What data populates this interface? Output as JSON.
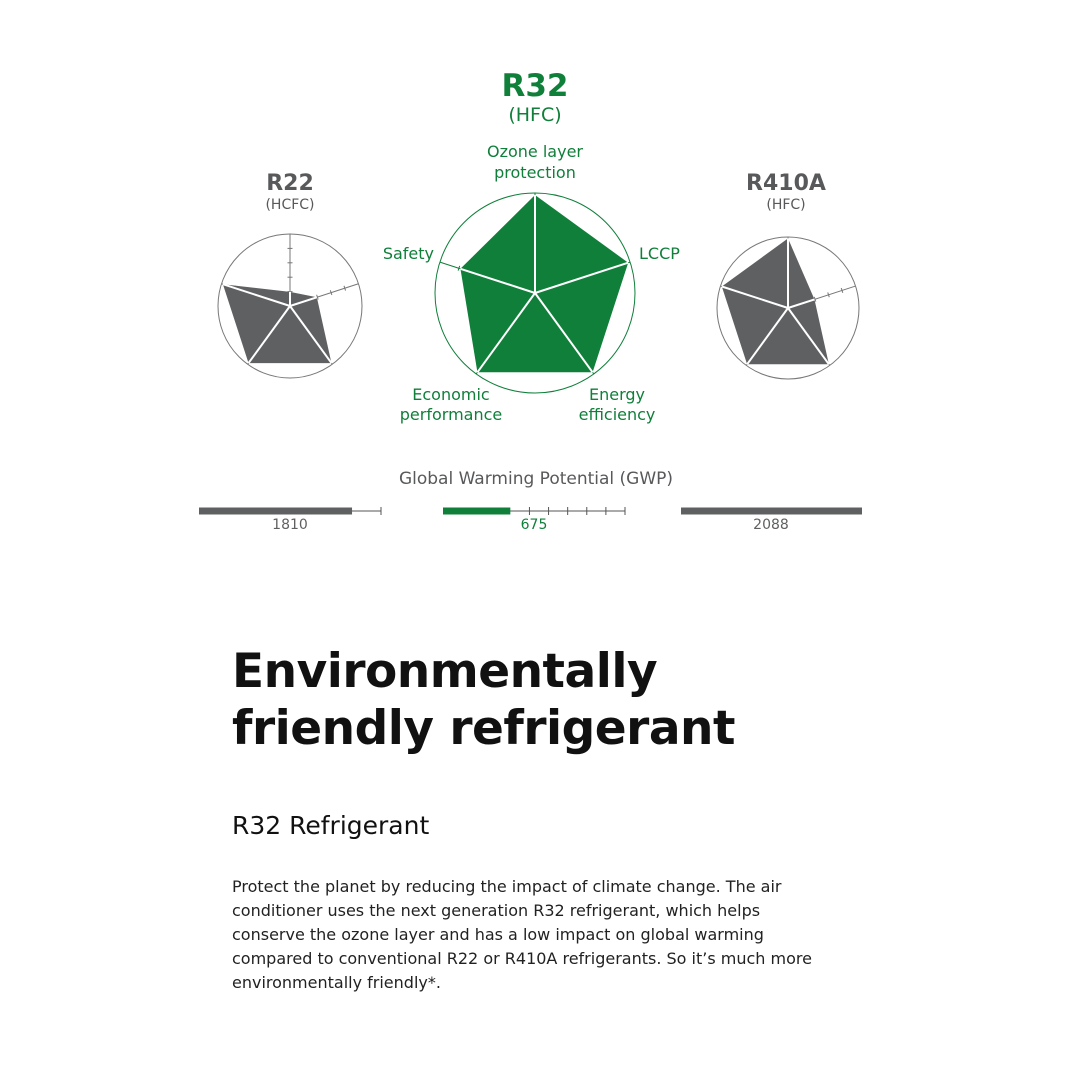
{
  "colors": {
    "green": "#0f7f3a",
    "gray": "#5f6062",
    "title_gray": "#58595b"
  },
  "chart_data": [
    {
      "type": "radar",
      "axes": [
        "Ozone layer protection",
        "LCCP",
        "Energy efficiency",
        "Economic performance",
        "Safety"
      ],
      "range": [
        0,
        5
      ],
      "series": [
        {
          "name": "R22",
          "subtitle": "(HCFC)",
          "values": [
            1,
            2,
            5,
            5,
            5
          ],
          "color": "#5f6062"
        },
        {
          "name": "R32",
          "subtitle": "(HFC)",
          "values": [
            5,
            5,
            5,
            5,
            4
          ],
          "color": "#0f7f3a"
        },
        {
          "name": "R410A",
          "subtitle": "(HFC)",
          "values": [
            5,
            2,
            5,
            5,
            5
          ],
          "color": "#5f6062"
        }
      ]
    },
    {
      "type": "bar",
      "title": "Global Warming Potential (GWP)",
      "categories": [
        "R22",
        "R32",
        "R410A"
      ],
      "values": [
        1810,
        675,
        2088
      ],
      "value_labels": [
        "1810",
        "675",
        "2088"
      ]
    }
  ],
  "labels": {
    "ozone": "Ozone layer\nprotection",
    "lccp": "LCCP",
    "energy": "Energy\nefficiency",
    "economic": "Economic\nperformance",
    "safety": "Safety"
  },
  "content": {
    "title": "Environmentally friendly refrigerant",
    "subtitle": "R32 Refrigerant",
    "body": "Protect the planet by reducing the impact of climate change. The air conditioner uses the next generation R32 refrigerant, which helps conserve the ozone layer and has a low impact on global warming compared to conventional R22 or R410A refrigerants. So it’s much more environmentally friendly*."
  }
}
